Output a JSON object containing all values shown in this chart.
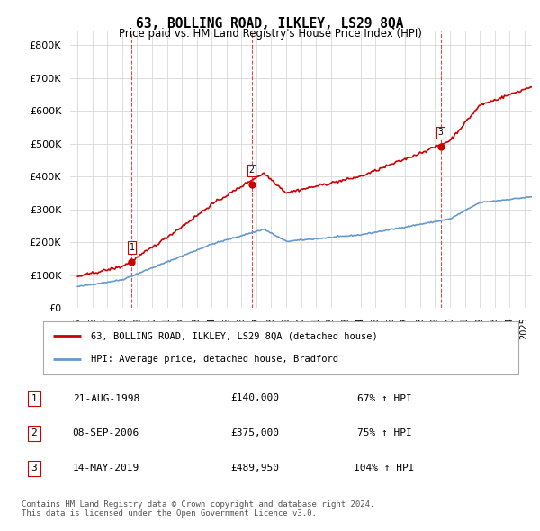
{
  "title": "63, BOLLING ROAD, ILKLEY, LS29 8QA",
  "subtitle": "Price paid vs. HM Land Registry's House Price Index (HPI)",
  "sale_prices": [
    140000,
    375000,
    489950
  ],
  "sale_labels": [
    "1",
    "2",
    "3"
  ],
  "sale_label_display": [
    {
      "num": "1",
      "date": "21-AUG-1998",
      "price": "£140,000",
      "hpi": "67% ↑ HPI"
    },
    {
      "num": "2",
      "date": "08-SEP-2006",
      "price": "£375,000",
      "hpi": "75% ↑ HPI"
    },
    {
      "num": "3",
      "date": "14-MAY-2019",
      "price": "£489,950",
      "hpi": "104% ↑ HPI"
    }
  ],
  "sale_year_floats": [
    1998.6333,
    2006.6833,
    2019.3667
  ],
  "house_color": "#cc0000",
  "hpi_color": "#6699cc",
  "vline_color": "#cc0000",
  "background_color": "#ffffff",
  "grid_color": "#dddddd",
  "legend_label_house": "63, BOLLING ROAD, ILKLEY, LS29 8QA (detached house)",
  "legend_label_hpi": "HPI: Average price, detached house, Bradford",
  "copyright_text": "Contains HM Land Registry data © Crown copyright and database right 2024.\nThis data is licensed under the Open Government Licence v3.0.",
  "ylim": [
    0,
    840000
  ],
  "yticks": [
    0,
    100000,
    200000,
    300000,
    400000,
    500000,
    600000,
    700000,
    800000
  ],
  "ytick_labels": [
    "£0",
    "£100K",
    "£200K",
    "£300K",
    "£400K",
    "£500K",
    "£600K",
    "£700K",
    "£800K"
  ],
  "xlim_start": 1994.5,
  "xlim_end": 2025.5,
  "xtick_years": [
    1995,
    1996,
    1997,
    1998,
    1999,
    2000,
    2001,
    2002,
    2003,
    2004,
    2005,
    2006,
    2007,
    2008,
    2009,
    2010,
    2011,
    2012,
    2013,
    2014,
    2015,
    2016,
    2017,
    2018,
    2019,
    2020,
    2021,
    2022,
    2023,
    2024,
    2025
  ]
}
